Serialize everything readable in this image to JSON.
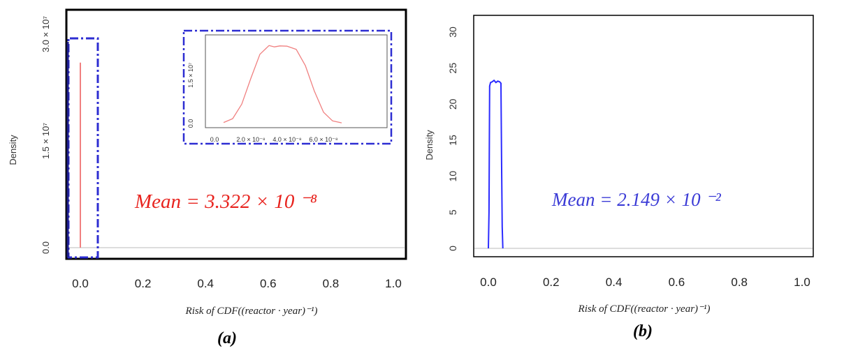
{
  "panels": [
    {
      "id": "a",
      "caption": "(a)",
      "ylabel": "Density",
      "xlabel": "Risk of CDF((reactor · year)⁻¹)",
      "mean_label": "Mean = 3.322 × 10 ⁻⁸",
      "mean_color": "#e8231e",
      "line_color": "#f08080",
      "box_color": "#2d2dd2",
      "chart_data": {
        "type": "line",
        "x_ticks": [
          "0.0",
          "0.2",
          "0.4",
          "0.6",
          "0.8",
          "1.0"
        ],
        "y_ticks": [
          "0.0",
          "1.5 × 10⁷",
          "3.0 × 10⁷"
        ],
        "xlim": [
          0,
          1.0
        ],
        "ylim": [
          0,
          30000000.0
        ],
        "series": [
          {
            "x": [
              0,
              0
            ],
            "y": [
              0,
              26000000.0
            ]
          }
        ]
      },
      "inset": {
        "x_ticks": [
          "0.0",
          "2.0 × 10⁻⁸",
          "4.0 × 10⁻⁸",
          "6.0 × 10⁻⁸"
        ],
        "y_ticks": [
          "0.0",
          "1.5 × 10⁷"
        ],
        "xlim": [
          -5e-09,
          9.5e-08
        ],
        "ylim": [
          0,
          26000000.0
        ],
        "series": [
          {
            "x": [
              5e-09,
              1e-08,
              1.5e-08,
              2e-08,
              2.5e-08,
              3e-08,
              3.3e-08,
              3.6e-08,
              4e-08,
              4.5e-08,
              5e-08,
              5.5e-08,
              6e-08,
              6.5e-08,
              7e-08
            ],
            "y": [
              300000.0,
              1500000.0,
              6000000.0,
              14000000.0,
              21500000.0,
              24200000.0,
              23800000.0,
              24100000.0,
              24000000.0,
              23000000.0,
              18000000.0,
              10000000.0,
              3500000.0,
              800000.0,
              200000.0
            ]
          }
        ]
      }
    },
    {
      "id": "b",
      "caption": "(b)",
      "ylabel": "Density",
      "xlabel": "Risk of CDF((reactor · year)⁻¹)",
      "mean_label": "Mean = 2.149 × 10 ⁻²",
      "mean_color": "#3b3bd6",
      "line_color": "#2b2bff",
      "chart_data": {
        "type": "line",
        "x_ticks": [
          "0.0",
          "0.2",
          "0.4",
          "0.6",
          "0.8",
          "1.0"
        ],
        "y_ticks": [
          "0",
          "5",
          "10",
          "15",
          "20",
          "25",
          "30"
        ],
        "xlim": [
          0,
          1.0
        ],
        "ylim": [
          0,
          30
        ],
        "series": [
          {
            "x": [
              0.0,
              0.002,
              0.004,
              0.007,
              0.012,
              0.018,
              0.024,
              0.03,
              0.036,
              0.04,
              0.042,
              0.044,
              0.046
            ],
            "y": [
              0,
              5,
              22.5,
              23.0,
              23.1,
              23.3,
              23.0,
              23.2,
              23.1,
              22.9,
              12,
              3,
              0
            ]
          }
        ]
      }
    }
  ]
}
